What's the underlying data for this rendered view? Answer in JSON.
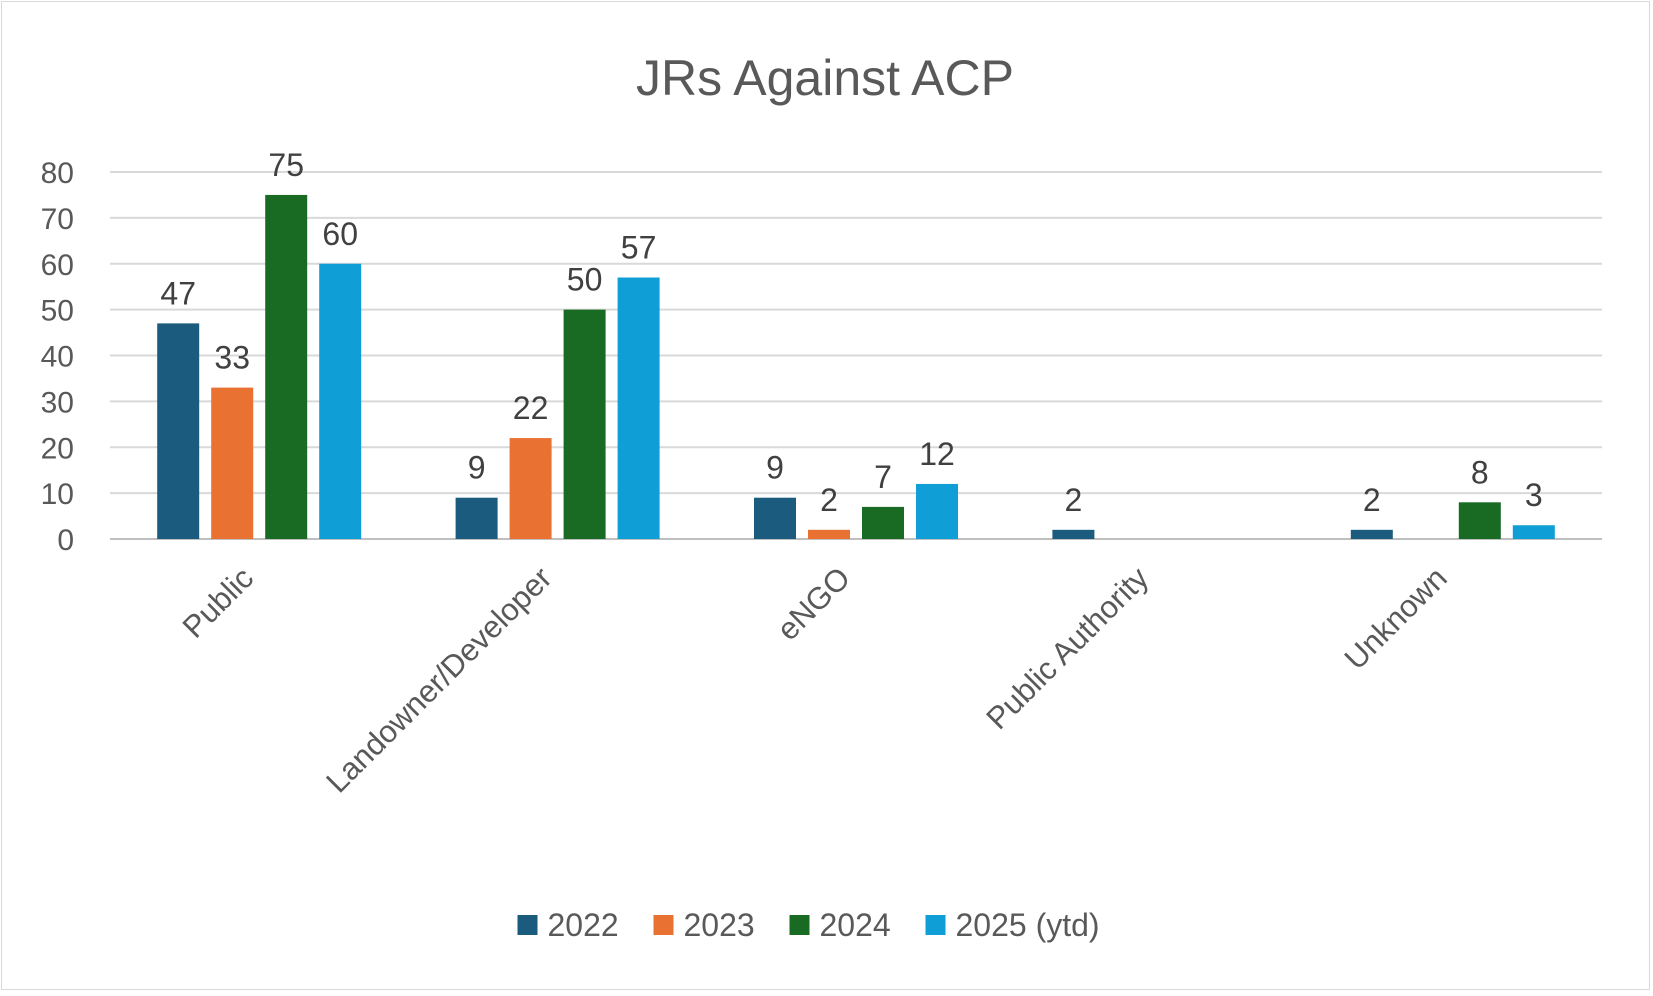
{
  "chart_data": {
    "type": "bar",
    "title": "JRs Against ACP",
    "xlabel": "",
    "ylabel": "",
    "ylim": [
      0,
      80
    ],
    "yticks": [
      0,
      10,
      20,
      30,
      40,
      50,
      60,
      70,
      80
    ],
    "grid": true,
    "legend_position": "bottom",
    "categories": [
      "Public",
      "Landowner/Developer",
      "eNGO",
      "Public Authority",
      "Unknown"
    ],
    "series": [
      {
        "name": "2022",
        "color": "#1b5b7d",
        "values": [
          47,
          9,
          9,
          2,
          2
        ]
      },
      {
        "name": "2023",
        "color": "#e97132",
        "values": [
          33,
          22,
          2,
          null,
          null
        ]
      },
      {
        "name": "2024",
        "color": "#196b24",
        "values": [
          75,
          50,
          7,
          null,
          8
        ]
      },
      {
        "name": "2025 (ytd)",
        "color": "#0f9ed5",
        "values": [
          60,
          57,
          12,
          null,
          3
        ]
      }
    ]
  }
}
